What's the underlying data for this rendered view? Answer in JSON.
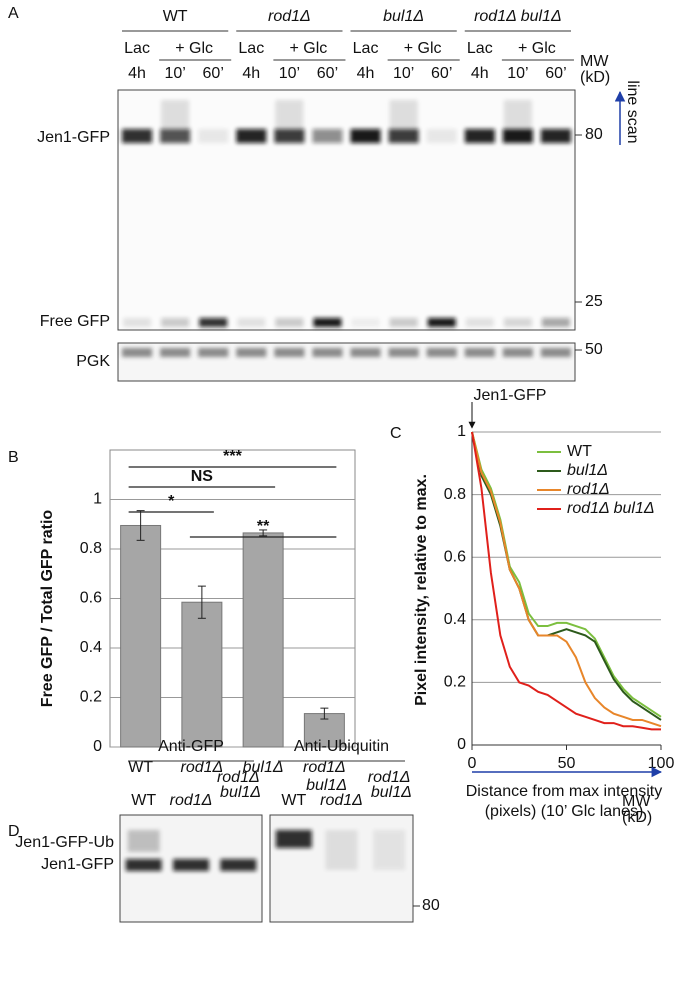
{
  "panel_a": {
    "label": "A",
    "groups": [
      "WT",
      "rod1Δ",
      "bul1Δ",
      "rod1Δ bul1Δ"
    ],
    "conditions": [
      "Lac",
      "+ Glc"
    ],
    "times": [
      "4h",
      "10’",
      "60’"
    ],
    "mw_label": [
      "MW",
      "(kD)"
    ],
    "line_scan": "line scan",
    "markers": [
      "80",
      "25",
      "50"
    ],
    "rows": [
      "Jen1-GFP",
      "Free GFP",
      "PGK"
    ]
  },
  "chart_data": [
    {
      "type": "bar",
      "panel": "B",
      "ylabel": "Free GFP / Total GFP ratio",
      "categories": [
        "WT",
        "rod1Δ",
        "bul1Δ",
        "rod1Δ bul1Δ"
      ],
      "values": [
        0.895,
        0.585,
        0.865,
        0.135
      ],
      "errors": [
        0.06,
        0.065,
        0.012,
        0.022
      ],
      "color": "#a6a6a6",
      "ylim": [
        0,
        1.2
      ],
      "yticks": [
        0,
        0.2,
        0.4,
        0.6,
        0.8,
        1
      ],
      "grid": true,
      "significance": [
        "***",
        "NS",
        "*",
        "**"
      ]
    },
    {
      "type": "line",
      "panel": "C",
      "annotation": "Jen1-GFP",
      "ylabel": "Pixel intensity, relative to max.",
      "xlabel": [
        "Distance from max intensity",
        "(pixels)  (10’ Glc lanes)"
      ],
      "x": [
        0,
        5,
        10,
        15,
        20,
        25,
        30,
        35,
        40,
        45,
        50,
        55,
        60,
        65,
        70,
        75,
        80,
        85,
        90,
        95,
        100
      ],
      "series": [
        {
          "name": "WT",
          "color": "#7cbf3f",
          "values": [
            1,
            0.88,
            0.82,
            0.72,
            0.57,
            0.52,
            0.42,
            0.38,
            0.38,
            0.39,
            0.39,
            0.38,
            0.37,
            0.34,
            0.28,
            0.22,
            0.18,
            0.15,
            0.13,
            0.11,
            0.09
          ]
        },
        {
          "name": "bul1Δ",
          "color": "#2d5a1b",
          "values": [
            1,
            0.86,
            0.8,
            0.7,
            0.56,
            0.5,
            0.4,
            0.35,
            0.35,
            0.36,
            0.37,
            0.36,
            0.35,
            0.33,
            0.27,
            0.21,
            0.17,
            0.14,
            0.12,
            0.1,
            0.08
          ]
        },
        {
          "name": "rod1Δ",
          "color": "#e8862a",
          "values": [
            1,
            0.87,
            0.81,
            0.71,
            0.56,
            0.5,
            0.4,
            0.35,
            0.35,
            0.35,
            0.33,
            0.28,
            0.2,
            0.15,
            0.12,
            0.1,
            0.09,
            0.08,
            0.08,
            0.07,
            0.06
          ]
        },
        {
          "name": "rod1Δ bul1Δ",
          "color": "#e0201b",
          "values": [
            1,
            0.82,
            0.55,
            0.35,
            0.25,
            0.2,
            0.19,
            0.17,
            0.16,
            0.14,
            0.12,
            0.1,
            0.09,
            0.08,
            0.07,
            0.07,
            0.06,
            0.06,
            0.055,
            0.05,
            0.05
          ]
        }
      ],
      "xlim": [
        0,
        100
      ],
      "xticks": [
        0,
        50,
        100
      ],
      "ylim": [
        0,
        1
      ],
      "yticks": [
        0,
        0.2,
        0.4,
        0.6,
        0.8,
        1
      ],
      "grid": true,
      "legend": "top-right"
    }
  ],
  "panel_d": {
    "label": "D",
    "blots": [
      "Anti-GFP",
      "Anti-Ubiquitin"
    ],
    "lanes": [
      "WT",
      "rod1Δ",
      "rod1Δ bul1Δ"
    ],
    "mw_label": [
      "MW",
      "(kD)"
    ],
    "marker": "80",
    "rows": [
      "Jen1-GFP-Ub",
      "Jen1-GFP"
    ]
  }
}
